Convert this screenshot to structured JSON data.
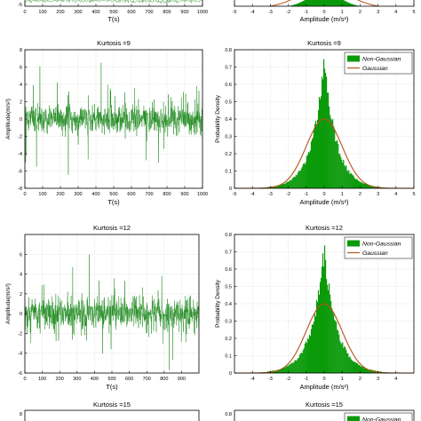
{
  "colors": {
    "signal": "#1f8a1f",
    "histogram": "#0a9a0a",
    "gaussian": "#b5541b",
    "axes": "#000000",
    "grid": "#d3d3d3"
  },
  "chart_data": [
    {
      "id": "top-left-partial",
      "type": "line",
      "title": "",
      "xlabel": "T(s)",
      "ylabel": "",
      "xlim": [
        0,
        1000
      ],
      "ylim": [
        -6,
        6
      ],
      "x_ticks": [
        "0",
        "100",
        "200",
        "300",
        "400",
        "500",
        "600",
        "700",
        "800",
        "900",
        "1000"
      ],
      "y_ticks": [
        "-5"
      ],
      "grid": true
    },
    {
      "id": "top-right-partial",
      "type": "bar",
      "title": "",
      "xlabel": "Amplitude (m/s²)",
      "ylabel": "",
      "xlim": [
        -5,
        5
      ],
      "x_ticks": [
        "-5",
        "-4",
        "-3",
        "-2",
        "-1",
        "0",
        "1",
        "2",
        "3",
        "4",
        "5"
      ],
      "grid": true
    },
    {
      "id": "k9-signal",
      "type": "line",
      "title": "Kurtosis =9",
      "xlabel": "T(s)",
      "ylabel": "Amplitude(m/s²)",
      "xlim": [
        0,
        1000
      ],
      "ylim": [
        -8,
        8
      ],
      "x_ticks": [
        "0",
        "100",
        "200",
        "300",
        "400",
        "500",
        "600",
        "700",
        "800",
        "900",
        "1000"
      ],
      "y_ticks": [
        "-8",
        "-6",
        "-4",
        "-2",
        "0",
        "2",
        "4",
        "6",
        "8"
      ],
      "grid": true,
      "kurtosis": 9,
      "seed": 9
    },
    {
      "id": "k9-hist",
      "type": "bar",
      "title": "Kurtosis =9",
      "xlabel": "Amplitude (m/s²)",
      "ylabel": "Probability Density",
      "xlim": [
        -5,
        5
      ],
      "ylim": [
        0,
        0.8
      ],
      "x_ticks": [
        "-5",
        "-4",
        "-3",
        "-2",
        "-1",
        "0",
        "1",
        "2",
        "3",
        "4",
        "5"
      ],
      "y_ticks": [
        "0",
        "0.1",
        "0.2",
        "0.3",
        "0.4",
        "0.5",
        "0.6",
        "0.7",
        "0.8"
      ],
      "grid": true,
      "legend": {
        "placement": "top-right",
        "entries": [
          "Non-Gaussian",
          "Gaussian"
        ]
      },
      "non_gaussian_peak": 0.74,
      "gaussian_peak": 0.4,
      "gaussian_sigma": 1.0
    },
    {
      "id": "k12-signal",
      "type": "line",
      "title": "Kurtosis =12",
      "xlabel": "T(s)",
      "ylabel": "Amplitude(m/s²)",
      "xlim": [
        0,
        1000
      ],
      "ylim": [
        -6,
        8
      ],
      "x_ticks": [
        "0",
        "100",
        "200",
        "300",
        "400",
        "500",
        "600",
        "700",
        "800",
        "900"
      ],
      "y_ticks": [
        "-6",
        "-4",
        "-2",
        "0",
        "2",
        "4",
        "6"
      ],
      "grid": true,
      "kurtosis": 12,
      "seed": 12
    },
    {
      "id": "k12-hist",
      "type": "bar",
      "title": "Kurtosis =12",
      "xlabel": "Amplitude (m/s²)",
      "ylabel": "Probability Density",
      "xlim": [
        -5,
        5
      ],
      "ylim": [
        0,
        0.8
      ],
      "x_ticks": [
        "-4",
        "-3",
        "-2",
        "-1",
        "0",
        "1",
        "2",
        "3",
        "4"
      ],
      "y_ticks": [
        "0",
        "0.1",
        "0.2",
        "0.3",
        "0.4",
        "0.5",
        "0.6",
        "0.7",
        "0.8"
      ],
      "grid": true,
      "legend": {
        "placement": "top-right",
        "entries": [
          "Non-Gaussian",
          "Gaussian"
        ]
      },
      "non_gaussian_peak": 0.7,
      "gaussian_peak": 0.4,
      "gaussian_sigma": 1.0
    },
    {
      "id": "k15-signal-partial",
      "type": "line",
      "title": "Kurtosis =15",
      "xlabel": "",
      "ylabel": "",
      "y_ticks": [
        "8"
      ],
      "grid": true
    },
    {
      "id": "k15-hist-partial",
      "type": "bar",
      "title": "Kurtosis =15",
      "xlabel": "",
      "ylabel": "",
      "y_ticks": [
        "0.8"
      ],
      "grid": true,
      "legend": {
        "placement": "top-right",
        "entries": [
          "Non-Gaussian"
        ]
      }
    }
  ]
}
